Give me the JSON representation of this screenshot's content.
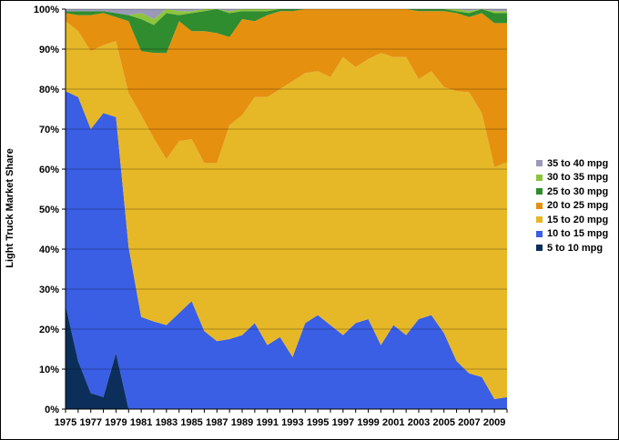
{
  "chart_data": {
    "type": "area",
    "stacked": "percent",
    "title": "",
    "xlabel": "",
    "ylabel": "Light Truck Market Share",
    "ylim": [
      0,
      100
    ],
    "y_ticks": [
      "0%",
      "10%",
      "20%",
      "30%",
      "40%",
      "50%",
      "60%",
      "70%",
      "80%",
      "90%",
      "100%"
    ],
    "x_tick_labels": [
      "1975",
      "1977",
      "1979",
      "1981",
      "1983",
      "1985",
      "1987",
      "1989",
      "1991",
      "1993",
      "1995",
      "1997",
      "1999",
      "2001",
      "2003",
      "2005",
      "2007",
      "2009"
    ],
    "grid": "horizontal",
    "legend_position": "right",
    "x": [
      1975,
      1976,
      1977,
      1978,
      1979,
      1980,
      1981,
      1982,
      1983,
      1984,
      1985,
      1986,
      1987,
      1988,
      1989,
      1990,
      1991,
      1992,
      1993,
      1994,
      1995,
      1996,
      1997,
      1998,
      1999,
      2000,
      2001,
      2002,
      2003,
      2004,
      2005,
      2006,
      2007,
      2008,
      2009,
      2010
    ],
    "series": [
      {
        "name": "5 to 10 mpg",
        "color": "#0b2f5a",
        "values": [
          26,
          12,
          4,
          3,
          14,
          0,
          0,
          0,
          0,
          0,
          0,
          0,
          0,
          0,
          0,
          0,
          0,
          0,
          0,
          0,
          0,
          0,
          0,
          0,
          0,
          0,
          0,
          0,
          0,
          0,
          0,
          0,
          0,
          0,
          0,
          0
        ]
      },
      {
        "name": "10 to 15 mpg",
        "color": "#3a5ee4",
        "values": [
          53.5,
          66,
          66,
          71,
          59,
          40.5,
          23,
          22,
          21,
          24,
          27,
          19.5,
          17,
          17.5,
          18.5,
          21.5,
          16,
          18,
          13,
          21.5,
          23.5,
          21,
          18.5,
          21.5,
          22.5,
          16,
          21,
          18.5,
          22.5,
          23.5,
          19,
          12,
          9,
          8,
          2.5,
          3
        ]
      },
      {
        "name": "15 to 20 mpg",
        "color": "#e6b828",
        "values": [
          17.5,
          16.5,
          19.5,
          17,
          19,
          38.5,
          50.5,
          46,
          41.5,
          43,
          40.5,
          42,
          44.5,
          53.5,
          55,
          56.5,
          62,
          62,
          69,
          62.5,
          61,
          62,
          69.5,
          64,
          65,
          73,
          67,
          69.5,
          60,
          61,
          61.5,
          67.5,
          71,
          66,
          58,
          59
        ]
      },
      {
        "name": "20 to 25 mpg",
        "color": "#e5900f",
        "values": [
          2,
          4,
          9,
          8,
          6,
          18,
          16,
          21.5,
          26.5,
          30,
          27,
          33,
          32.5,
          22,
          24,
          19,
          20.5,
          19.5,
          17.5,
          16,
          15.5,
          17,
          12,
          14.5,
          12.5,
          11,
          12,
          12,
          17,
          15,
          19,
          19.5,
          19,
          25,
          36,
          35
        ]
      },
      {
        "name": "25 to 30 mpg",
        "color": "#2f8c2f",
        "values": [
          0.5,
          1,
          1,
          0.5,
          1,
          1.5,
          8,
          7,
          10,
          1.5,
          4.5,
          5,
          6,
          6,
          2,
          2.5,
          1,
          0.5,
          0.5,
          0,
          0,
          0,
          0,
          0,
          0,
          0,
          0,
          0,
          0.5,
          0.5,
          0.5,
          0.5,
          1,
          1,
          2.5,
          2.5
        ]
      },
      {
        "name": "30 to 35 mpg",
        "color": "#8cc43c",
        "values": [
          0,
          0,
          0,
          0,
          0,
          0,
          1.5,
          1.5,
          1,
          1,
          0.5,
          0.5,
          0,
          0.5,
          0.5,
          0.5,
          0.5,
          0,
          0,
          0,
          0,
          0,
          0,
          0,
          0,
          0,
          0,
          0,
          0,
          0,
          0,
          0.5,
          0.5,
          0,
          0.5,
          0.5
        ]
      },
      {
        "name": "35 to 40 mpg",
        "color": "#9a9ab8",
        "values": [
          0.5,
          0.5,
          0.5,
          0.5,
          1,
          1.5,
          1,
          2.5,
          0,
          0.5,
          0.5,
          0,
          0,
          0.5,
          0,
          0,
          0,
          0,
          0,
          0,
          0,
          0,
          0,
          0,
          0,
          0,
          0,
          0,
          0,
          0,
          0,
          0,
          0.5,
          0,
          0.5,
          0.5
        ]
      }
    ]
  }
}
